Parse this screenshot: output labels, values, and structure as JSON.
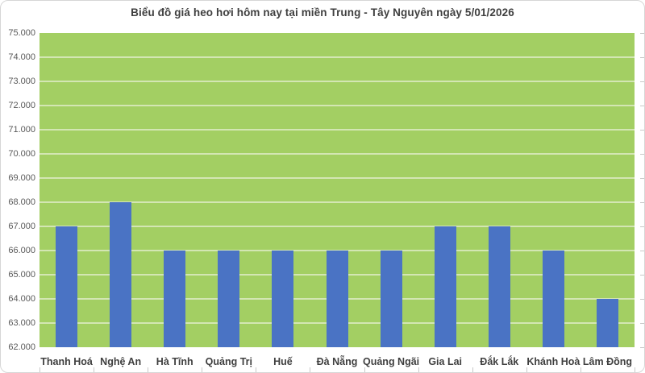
{
  "title": "Biểu đồ giá heo hơi hôm nay tại miền Trung - Tây Nguyên ngày 5/01/2026",
  "chart_data": {
    "type": "bar",
    "title": "Biểu đồ giá heo hơi hôm nay tại miền Trung - Tây Nguyên ngày 5/01/2026",
    "categories": [
      "Thanh Hoá",
      "Nghệ An",
      "Hà Tĩnh",
      "Quảng Trị",
      "Huế",
      "Đà Nẵng",
      "Quảng Ngãi",
      "Gia Lai",
      "Đắk Lắk",
      "Khánh Hoà",
      "Lâm Đồng"
    ],
    "values": [
      67000,
      68000,
      66000,
      66000,
      66000,
      66000,
      66000,
      67000,
      67000,
      66000,
      64000
    ],
    "xlabel": "",
    "ylabel": "",
    "ylim": [
      62000,
      75000
    ],
    "ytick_step": 1000,
    "ytick_labels": [
      "62.000",
      "63.000",
      "64.000",
      "65.000",
      "66.000",
      "67.000",
      "68.000",
      "69.000",
      "70.000",
      "71.000",
      "72.000",
      "73.000",
      "74.000",
      "75.000"
    ],
    "grid": true,
    "legend": "none",
    "colors": {
      "bar": "#4a73c4",
      "plot_background": "#a3cf63",
      "gridline": "#d3e6b3",
      "title_text": "#3f3f3f",
      "axis_label_text": "#595959",
      "category_label_text": "#3f3f3f",
      "frame_border": "#d6d6d6",
      "tick_mark": "#c9c9c9"
    }
  }
}
